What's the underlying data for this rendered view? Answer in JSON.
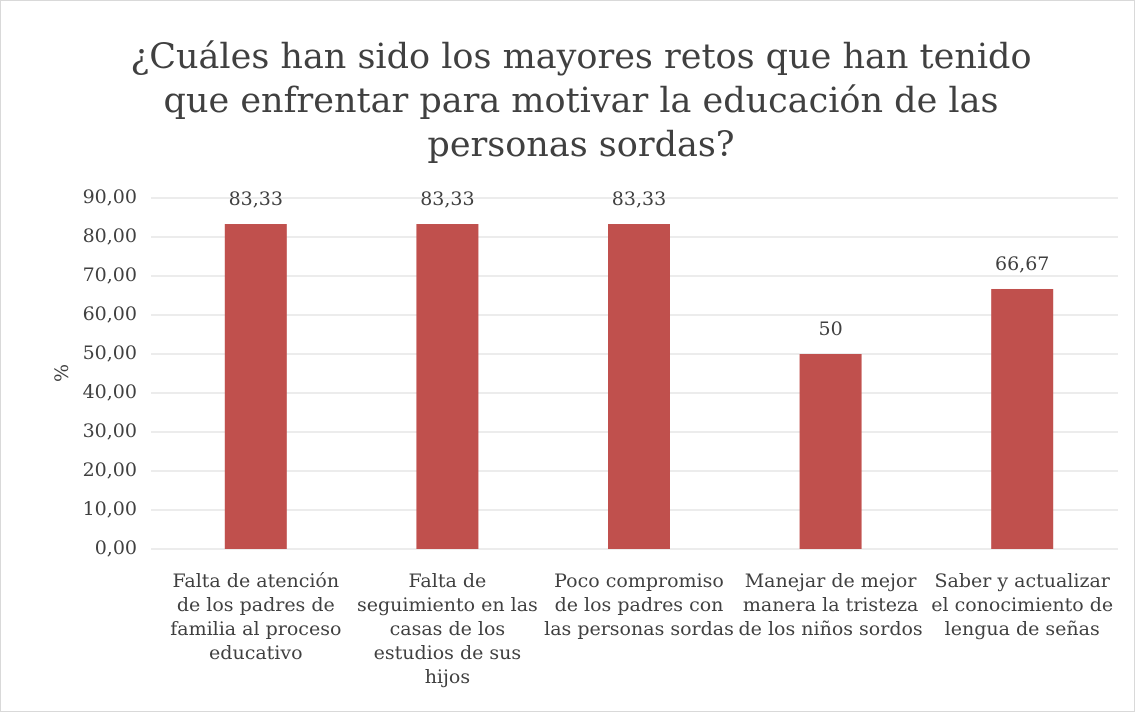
{
  "chart_data": {
    "type": "bar",
    "title": "¿Cuáles han sido los mayores retos que han tenido que enfrentar para motivar la educación de las personas sordas?",
    "y_label": "%",
    "categories": [
      "Falta de atención de los padres de familia al proceso educativo",
      "Falta de seguimiento en las casas de los estudios de sus hijos",
      "Poco compromiso de los padres con las personas sordas",
      "Manejar de mejor manera la tristeza de los niños sordos",
      "Saber y actualizar el conocimiento de lengua de señas"
    ],
    "values": [
      83.33,
      83.33,
      83.33,
      50,
      66.67
    ],
    "value_labels": [
      "83,33",
      "83,33",
      "83,33",
      "50",
      "66,67"
    ],
    "color": "#c0504d",
    "ylim": [
      0,
      90
    ],
    "yticks": [
      {
        "value": 0,
        "label": "0,00"
      },
      {
        "value": 10,
        "label": "10,00"
      },
      {
        "value": 20,
        "label": "20,00"
      },
      {
        "value": 30,
        "label": "30,00"
      },
      {
        "value": 40,
        "label": "40,00"
      },
      {
        "value": 50,
        "label": "50,00"
      },
      {
        "value": 60,
        "label": "60,00"
      },
      {
        "value": 70,
        "label": "70,00"
      },
      {
        "value": 80,
        "label": "80,00"
      },
      {
        "value": 90,
        "label": "90,00"
      }
    ],
    "grid": true
  }
}
